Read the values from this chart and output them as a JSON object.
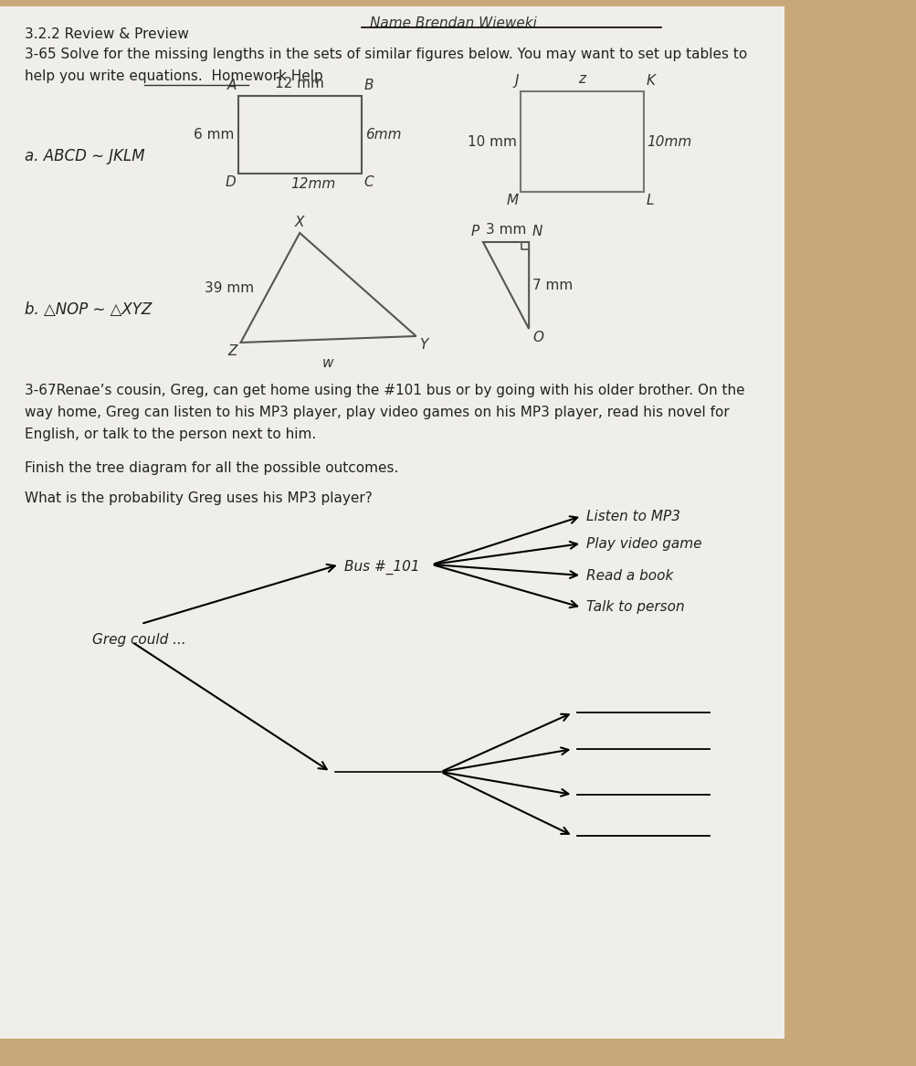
{
  "bg_color": "#c8a87a",
  "paper_color": "#f0eee8",
  "title_line1": "3.2.2 Review & Preview",
  "name_label": "Name Brendan Wieweki",
  "problem_65_line1": "3-65 Solve for the missing lengths in the sets of similar figures below. You may want to set up tables to",
  "problem_65_line2": "help you write equations.  Homework Help",
  "part_a_label": "a. ABCD ∼ JKLM",
  "part_b_label": "b. △NOP ∼ △XYZ",
  "problem_67_text1": "3-67Renae’s cousin, Greg, can get home using the #101 bus or by going with his older brother. On the",
  "problem_67_text2": "way home, Greg can listen to his MP3 player, play video games on his MP3 player, read his novel for",
  "problem_67_text3": "English, or talk to the person next to him.",
  "finish_text": "Finish the tree diagram for all the possible outcomes.",
  "prob_text": "What is the probability Greg uses his MP3 player?",
  "greg_could": "Greg could ...",
  "bus_label": "Bus #_101",
  "tree_outcomes_bus": [
    "Listen to MP3",
    "Play video game",
    "Read a book",
    "Talk to person"
  ],
  "rect1_top": "12 mm",
  "rect1_left": "6 mm",
  "rect1_right": "6mm",
  "rect1_bottom": "12mm",
  "rect1_corners": [
    "A",
    "B",
    "C",
    "D"
  ],
  "rect2_top": "z",
  "rect2_left": "10 mm",
  "rect2_right": "10mm",
  "rect2_corners": [
    "J",
    "K",
    "L",
    "M"
  ],
  "tri1_left": "39 mm",
  "tri1_corners": [
    "X",
    "Z",
    "Y",
    "w"
  ],
  "tri2_left": "3 mm",
  "tri2_right": "7 mm",
  "tri2_corners": [
    "P",
    "N",
    "O"
  ]
}
